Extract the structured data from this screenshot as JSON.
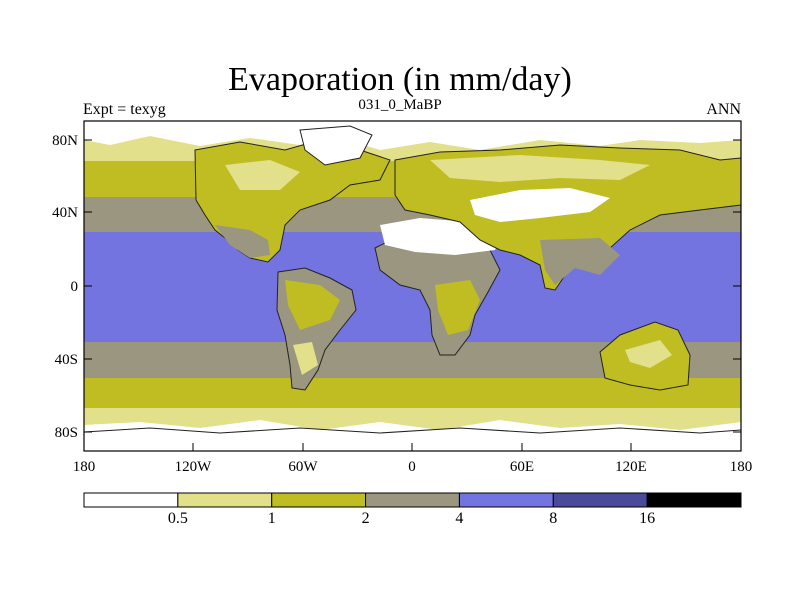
{
  "header": {
    "title": "Evaporation (in mm/day)",
    "subtitle": "031_0_MaBP",
    "left_label": "Expt = texyg",
    "right_label": "ANN"
  },
  "axes": {
    "x_ticks": [
      "180",
      "120W",
      "60W",
      "0",
      "60E",
      "120E",
      "180"
    ],
    "y_ticks": [
      "80N",
      "40N",
      "0",
      "40S",
      "80S"
    ]
  },
  "colorbar": {
    "colors": [
      "#ffffff",
      "#e2e08a",
      "#bfbd22",
      "#9a9680",
      "#7474e0",
      "#4a4a9a",
      "#000000"
    ],
    "labels": [
      "0.5",
      "1",
      "2",
      "4",
      "8",
      "16"
    ]
  },
  "chart_data": {
    "type": "heatmap",
    "title": "Evaporation (in mm/day)",
    "subtitle": "031_0_MaBP",
    "xlabel": "",
    "ylabel": "",
    "xlim": [
      -180,
      180
    ],
    "ylim": [
      -90,
      90
    ],
    "levels": [
      0.5,
      1,
      2,
      4,
      8,
      16
    ],
    "bands_by_latitude": [
      {
        "lat_range": [
          60,
          90
        ],
        "value_class": "0.5-1"
      },
      {
        "lat_range": [
          40,
          60
        ],
        "value_class": "1-2"
      },
      {
        "lat_range": [
          30,
          40
        ],
        "value_class": "2-4"
      },
      {
        "lat_range": [
          -30,
          30
        ],
        "value_class": "4-8"
      },
      {
        "lat_range": [
          -45,
          -30
        ],
        "value_class": "2-4"
      },
      {
        "lat_range": [
          -60,
          -45
        ],
        "value_class": "1-2"
      },
      {
        "lat_range": [
          -90,
          -60
        ],
        "value_class": "0.5-1"
      }
    ]
  }
}
